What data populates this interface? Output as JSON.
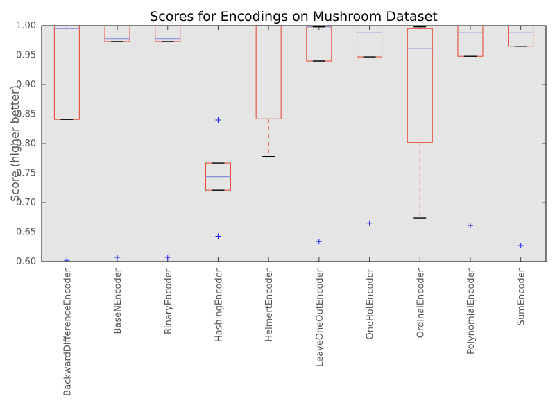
{
  "chart_data": {
    "type": "box",
    "title": "Scores for Encodings on Mushroom Dataset",
    "xlabel": "",
    "ylabel": "Score (higher better)",
    "ylim": [
      0.6,
      1.0
    ],
    "yticks": [
      "0.60",
      "0.65",
      "0.70",
      "0.75",
      "0.80",
      "0.85",
      "0.90",
      "0.95",
      "1.00"
    ],
    "grid": false,
    "colors": {
      "plot_background": "#e5e5e5",
      "box": "#e8412b",
      "median": "#8a8fdc",
      "cap": "#000000",
      "flier": "#1a1aff"
    },
    "categories": [
      "BackwardDifferenceEncoder",
      "BaseNEncoder",
      "BinaryEncoder",
      "HashingEncoder",
      "HelmertEncoder",
      "LeaveOneOutEncoder",
      "OneHotEncoder",
      "OrdinalEncoder",
      "PolynomialEncoder",
      "SumEncoder"
    ],
    "boxes": [
      {
        "whisker_low": 0.841,
        "q1": 0.841,
        "median": 0.995,
        "q3": 1.0,
        "whisker_high": 1.0,
        "fliers": [
          0.602
        ]
      },
      {
        "whisker_low": 0.973,
        "q1": 0.973,
        "median": 0.978,
        "q3": 1.0,
        "whisker_high": 1.0,
        "fliers": [
          0.607
        ]
      },
      {
        "whisker_low": 0.973,
        "q1": 0.973,
        "median": 0.978,
        "q3": 1.0,
        "whisker_high": 1.0,
        "fliers": [
          0.607
        ]
      },
      {
        "whisker_low": 0.721,
        "q1": 0.721,
        "median": 0.744,
        "q3": 0.767,
        "whisker_high": 0.767,
        "fliers": [
          0.643,
          0.84
        ]
      },
      {
        "whisker_low": 0.778,
        "q1": 0.842,
        "median": 1.0,
        "q3": 1.0,
        "whisker_high": 1.0,
        "fliers": []
      },
      {
        "whisker_low": 0.94,
        "q1": 0.94,
        "median": 0.998,
        "q3": 0.998,
        "whisker_high": 0.998,
        "fliers": [
          0.634
        ]
      },
      {
        "whisker_low": 0.947,
        "q1": 0.947,
        "median": 0.988,
        "q3": 1.0,
        "whisker_high": 1.0,
        "fliers": [
          0.665
        ]
      },
      {
        "whisker_low": 0.674,
        "q1": 0.802,
        "median": 0.961,
        "q3": 0.995,
        "whisker_high": 0.998,
        "fliers": []
      },
      {
        "whisker_low": 0.948,
        "q1": 0.948,
        "median": 0.988,
        "q3": 1.0,
        "whisker_high": 1.0,
        "fliers": [
          0.661
        ]
      },
      {
        "whisker_low": 0.965,
        "q1": 0.965,
        "median": 0.988,
        "q3": 1.0,
        "whisker_high": 1.0,
        "fliers": [
          0.627
        ]
      }
    ]
  }
}
